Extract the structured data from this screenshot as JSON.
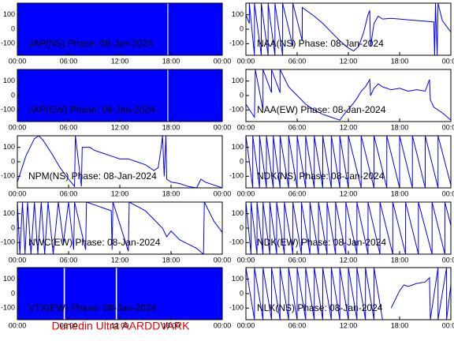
{
  "chart_data": [
    {
      "type": "area",
      "title": "JAP(NS) Phase: 08-Jan-2024",
      "color": "#0000ff",
      "x": [
        0,
        17.55,
        17.6,
        17.7,
        24
      ],
      "values": [
        180,
        180,
        null,
        180,
        180
      ],
      "xlim": [
        0,
        24
      ],
      "ylim": [
        -180,
        180
      ],
      "xticks": [
        {
          "value": 0,
          "label": "00:00"
        },
        {
          "value": 6,
          "label": "06:00"
        },
        {
          "value": 12,
          "label": "12:00"
        },
        {
          "value": 18,
          "label": "18:00"
        },
        {
          "value": 24,
          "label": "00:00"
        }
      ],
      "yticks": [
        -100,
        0,
        100
      ]
    },
    {
      "type": "line",
      "title": "NAA(NS) Phase: 08-Jan-2024",
      "color": "#0000ff",
      "x": [
        0,
        0.4,
        0.4,
        1.0,
        1.0,
        1.8,
        1.8,
        2.6,
        2.6,
        3.4,
        3.4,
        4.3,
        4.3,
        5.5,
        5.5,
        6.6,
        6.6,
        8,
        9,
        10,
        11,
        12,
        12.6,
        13.2,
        13.8,
        14.3,
        14.5,
        14.6,
        15,
        15.5,
        16,
        17,
        18,
        19,
        20,
        21,
        22,
        22.1,
        22.2,
        22.4,
        22.5,
        23,
        24
      ],
      "values": [
        100,
        40,
        180,
        -180,
        180,
        -180,
        180,
        -180,
        180,
        -180,
        180,
        -180,
        180,
        -120,
        180,
        -80,
        150,
        90,
        40,
        -20,
        -80,
        -130,
        -150,
        -120,
        -20,
        100,
        130,
        -120,
        40,
        90,
        70,
        75,
        70,
        65,
        60,
        55,
        50,
        -180,
        180,
        -180,
        180,
        60,
        -20
      ],
      "xlim": [
        0,
        24
      ],
      "ylim": [
        -180,
        180
      ],
      "xticks": [
        {
          "value": 0,
          "label": "00:00"
        },
        {
          "value": 6,
          "label": "06:00"
        },
        {
          "value": 12,
          "label": "12:00"
        },
        {
          "value": 18,
          "label": "18:00"
        },
        {
          "value": 24,
          "label": "00:00"
        }
      ],
      "yticks": [
        -100,
        0,
        100
      ]
    },
    {
      "type": "area",
      "title": "JAP(EW) Phase: 08-Jan-2024",
      "color": "#0000ff",
      "x": [
        0,
        17.55,
        17.6,
        17.7,
        24
      ],
      "values": [
        180,
        180,
        null,
        180,
        180
      ],
      "xlim": [
        0,
        24
      ],
      "ylim": [
        -180,
        180
      ],
      "xticks": [
        {
          "value": 0,
          "label": "00:00"
        },
        {
          "value": 6,
          "label": "06:00"
        },
        {
          "value": 12,
          "label": "12:00"
        },
        {
          "value": 18,
          "label": "18:00"
        },
        {
          "value": 24,
          "label": "00:00"
        }
      ],
      "yticks": [
        -100,
        0,
        100
      ]
    },
    {
      "type": "line",
      "title": "NAA(EW) Phase: 08-Jan-2024",
      "color": "#0000ff",
      "x": [
        0,
        1,
        1.1,
        2,
        2,
        3,
        3,
        4,
        4,
        5,
        6,
        7,
        8,
        9,
        10,
        11,
        11.5,
        12.5,
        13,
        13.5,
        14,
        14.5,
        14.6,
        15,
        15.5,
        16,
        17,
        18,
        19,
        20,
        21,
        21.5,
        21.6,
        22,
        23,
        24
      ],
      "values": [
        -60,
        -150,
        180,
        -100,
        180,
        20,
        180,
        20,
        180,
        60,
        0,
        -60,
        -100,
        -130,
        -150,
        -170,
        -130,
        -60,
        -20,
        30,
        60,
        110,
        0,
        50,
        80,
        60,
        40,
        50,
        30,
        40,
        30,
        110,
        -30,
        -80,
        -120,
        -170
      ],
      "xlim": [
        0,
        24
      ],
      "ylim": [
        -180,
        180
      ],
      "xticks": [
        {
          "value": 0,
          "label": "00:00"
        },
        {
          "value": 6,
          "label": "06:00"
        },
        {
          "value": 12,
          "label": "12:00"
        },
        {
          "value": 18,
          "label": "18:00"
        },
        {
          "value": 24,
          "label": "00:00"
        }
      ],
      "yticks": [
        -100,
        0,
        100
      ]
    },
    {
      "type": "line",
      "title": "NPM(NS) Phase: 08-Jan-2024",
      "color": "#0000ff",
      "x": [
        0,
        1,
        2,
        2.5,
        3,
        4,
        5,
        6,
        6.7,
        6.8,
        7.5,
        7.6,
        8.5,
        9,
        10,
        11,
        12,
        13,
        14,
        15,
        16,
        16.5,
        16.8,
        17,
        17.2,
        17.4,
        17.5,
        18,
        19,
        20,
        21,
        21.5,
        22,
        23,
        24
      ],
      "values": [
        -140,
        40,
        160,
        180,
        150,
        60,
        -40,
        -120,
        -170,
        180,
        -170,
        100,
        100,
        80,
        60,
        40,
        20,
        20,
        0,
        -20,
        -60,
        -40,
        80,
        180,
        -100,
        180,
        -120,
        -140,
        -150,
        -170,
        -180,
        -120,
        -140,
        -160,
        -180
      ],
      "xlim": [
        0,
        24
      ],
      "ylim": [
        -180,
        180
      ],
      "xticks": [
        {
          "value": 0,
          "label": "00:00"
        },
        {
          "value": 6,
          "label": "06:00"
        },
        {
          "value": 12,
          "label": "12:00"
        },
        {
          "value": 18,
          "label": "18:00"
        },
        {
          "value": 24,
          "label": "00:00"
        }
      ],
      "yticks": [
        -100,
        0,
        100
      ]
    },
    {
      "type": "line",
      "title": "NDK(NS) Phase: 08-Jan-2024",
      "color": "#0000ff",
      "x": [
        0,
        0.8,
        0.8,
        1.6,
        1.6,
        2.4,
        2.4,
        3.2,
        3.2,
        4,
        4,
        5,
        5,
        6,
        6,
        7,
        7,
        8,
        8,
        9,
        9,
        10,
        10,
        11,
        11,
        12,
        12,
        13.5,
        13.5,
        15,
        15,
        16.5,
        16.5,
        18,
        18,
        19.5,
        19.5,
        21,
        21,
        22.5,
        22.5,
        24
      ],
      "values": [
        180,
        -180,
        180,
        -180,
        180,
        -180,
        180,
        -180,
        180,
        -180,
        180,
        -180,
        180,
        -180,
        180,
        -180,
        180,
        -180,
        180,
        -180,
        180,
        -180,
        180,
        -180,
        180,
        -180,
        180,
        -180,
        180,
        -180,
        180,
        -180,
        180,
        -180,
        180,
        -180,
        180,
        -180,
        180,
        -180,
        180,
        -160
      ],
      "xlim": [
        0,
        24
      ],
      "ylim": [
        -180,
        180
      ],
      "xticks": [
        {
          "value": 0,
          "label": "00:00"
        },
        {
          "value": 6,
          "label": "06:00"
        },
        {
          "value": 12,
          "label": "12:00"
        },
        {
          "value": 18,
          "label": "18:00"
        },
        {
          "value": 24,
          "label": "00:00"
        }
      ],
      "yticks": [
        -100,
        0,
        100
      ]
    },
    {
      "type": "line",
      "title": "NWC(EW) Phase: 08-Jan-2024",
      "color": "#0000ff",
      "x": [
        0,
        0.3,
        0.6,
        0.9,
        1.2,
        1.6,
        2,
        2.4,
        2.8,
        3.2,
        3.6,
        4.2,
        4.8,
        5.4,
        6,
        6.6,
        6.7,
        8,
        8.1,
        11,
        11.1,
        11.2,
        13,
        13.1,
        15,
        16,
        17,
        17.5,
        18,
        19,
        20,
        21,
        21.8,
        21.9,
        23,
        24
      ],
      "values": [
        180,
        -180,
        180,
        -180,
        180,
        -180,
        180,
        -180,
        180,
        -180,
        180,
        -180,
        180,
        -100,
        180,
        -150,
        180,
        -150,
        180,
        120,
        -150,
        180,
        -160,
        180,
        120,
        60,
        0,
        -60,
        -20,
        -80,
        -110,
        -140,
        -180,
        180,
        50,
        -30
      ],
      "xlim": [
        0,
        24
      ],
      "ylim": [
        -180,
        180
      ],
      "xticks": [
        {
          "value": 0,
          "label": "00:00"
        },
        {
          "value": 6,
          "label": "06:00"
        },
        {
          "value": 12,
          "label": "12:00"
        },
        {
          "value": 18,
          "label": "18:00"
        },
        {
          "value": 24,
          "label": "00:00"
        }
      ],
      "yticks": [
        -100,
        0,
        100
      ]
    },
    {
      "type": "line",
      "title": "NDK(EW) Phase: 08-Jan-2024",
      "color": "#0000ff",
      "x": [
        0,
        0.6,
        0.6,
        1.3,
        1.3,
        2,
        2,
        2.8,
        2.8,
        3.6,
        3.6,
        4.5,
        4.5,
        5.5,
        5.5,
        6.5,
        6.5,
        7.5,
        7.5,
        8.5,
        8.5,
        9.5,
        9.5,
        10.5,
        10.5,
        11.7,
        11.7,
        13,
        13,
        14.3,
        14.3,
        15.7,
        15.7,
        17.2,
        17.2,
        18.7,
        18.7,
        20.2,
        20.2,
        21.8,
        21.8,
        23.3,
        23.3,
        24
      ],
      "values": [
        180,
        -180,
        180,
        -180,
        180,
        -180,
        180,
        -180,
        180,
        -180,
        180,
        -180,
        180,
        -180,
        180,
        -180,
        180,
        -180,
        180,
        -180,
        180,
        -180,
        180,
        -180,
        180,
        -180,
        180,
        -180,
        180,
        -180,
        180,
        -180,
        180,
        -180,
        180,
        -180,
        180,
        -180,
        180,
        -180,
        180,
        -180,
        180,
        20
      ],
      "xlim": [
        0,
        24
      ],
      "ylim": [
        -180,
        180
      ],
      "xticks": [
        {
          "value": 0,
          "label": "00:00"
        },
        {
          "value": 6,
          "label": "06:00"
        },
        {
          "value": 12,
          "label": "12:00"
        },
        {
          "value": 18,
          "label": "18:00"
        },
        {
          "value": 24,
          "label": "00:00"
        }
      ],
      "yticks": [
        -100,
        0,
        100
      ]
    },
    {
      "type": "area",
      "title": "VTX(EW) Phase: 08-Jan-2024",
      "color": "#0000ff",
      "x": [
        0,
        5.4,
        5.5,
        5.6,
        11.5,
        11.6,
        11.7,
        24
      ],
      "values": [
        180,
        180,
        null,
        180,
        180,
        null,
        180,
        180
      ],
      "xlim": [
        0,
        24
      ],
      "ylim": [
        -180,
        180
      ],
      "xticks": [
        {
          "value": 0,
          "label": "00:00"
        },
        {
          "value": 6,
          "label": "06:00"
        },
        {
          "value": 12,
          "label": "12:00"
        },
        {
          "value": 18,
          "label": "18:00"
        },
        {
          "value": 24,
          "label": "00:00"
        }
      ],
      "yticks": [
        -100,
        0,
        100
      ]
    },
    {
      "type": "line",
      "title": "NLK(NS) Phase: 08-Jan-2024",
      "color": "#0000ff",
      "x": [
        0,
        1,
        1,
        2,
        2,
        3,
        3,
        4,
        4,
        5,
        5,
        6,
        6,
        7,
        7,
        8,
        8,
        9,
        9,
        10,
        10,
        11,
        11,
        12,
        12,
        13,
        13,
        14,
        14,
        15,
        15,
        16,
        16.5,
        17,
        18,
        18.5,
        19,
        20,
        21,
        21.5,
        21.6,
        22.5,
        22.5,
        23.5,
        23.5,
        24
      ],
      "values": [
        180,
        -180,
        180,
        -180,
        180,
        -180,
        180,
        -180,
        180,
        -180,
        180,
        -180,
        180,
        -180,
        180,
        -180,
        180,
        -180,
        180,
        -180,
        180,
        -180,
        180,
        -180,
        180,
        -180,
        180,
        -180,
        180,
        -180,
        180,
        -180,
        null,
        -100,
        20,
        60,
        50,
        70,
        80,
        110,
        -180,
        180,
        -180,
        180,
        -180,
        60
      ],
      "xlim": [
        0,
        24
      ],
      "ylim": [
        -180,
        180
      ],
      "xticks": [
        {
          "value": 0,
          "label": "00:00"
        },
        {
          "value": 6,
          "label": "06:00"
        },
        {
          "value": 12,
          "label": "12:00"
        },
        {
          "value": 18,
          "label": "18:00"
        },
        {
          "value": 24,
          "label": "00:00"
        }
      ],
      "yticks": [
        -100,
        0,
        100
      ]
    }
  ],
  "footer": "Dunedin Ultra AARDDVARK"
}
